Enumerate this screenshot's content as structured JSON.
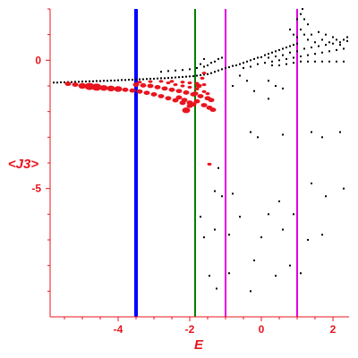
{
  "chart_data": {
    "type": "scatter",
    "title": "",
    "xlabel": "E",
    "ylabel": "<J3>",
    "xlim": [
      -5.9,
      2.45
    ],
    "ylim": [
      -10,
      2
    ],
    "x_ticks": [
      {
        "value": -4,
        "label": "-4"
      },
      {
        "value": -2,
        "label": "-2"
      },
      {
        "value": 0,
        "label": "0"
      },
      {
        "value": 2,
        "label": "2"
      }
    ],
    "y_ticks": [
      {
        "value": 0,
        "label": "0"
      },
      {
        "value": -5,
        "label": "-5"
      }
    ],
    "vertical_lines": [
      {
        "x": -3.5,
        "color": "#0000ff",
        "style": "thick"
      },
      {
        "x": -1.85,
        "color": "#008000",
        "style": "normal"
      },
      {
        "x": -1.0,
        "color": "#e000e0",
        "style": "normal"
      },
      {
        "x": 1.0,
        "color": "#e000e0",
        "style": "normal"
      }
    ],
    "series": [
      {
        "color": "#000000",
        "points": [
          [
            -5.8,
            -0.87
          ],
          [
            -5.7,
            -0.87
          ],
          [
            -5.6,
            -0.86
          ],
          [
            -5.5,
            -0.86
          ],
          [
            -5.4,
            -0.85
          ],
          [
            -5.3,
            -0.85
          ],
          [
            -5.2,
            -0.84
          ],
          [
            -5.1,
            -0.84
          ],
          [
            -5.0,
            -0.83
          ],
          [
            -4.9,
            -0.83
          ],
          [
            -4.8,
            -0.82
          ],
          [
            -4.7,
            -0.82
          ],
          [
            -4.6,
            -0.81
          ],
          [
            -4.5,
            -0.81
          ],
          [
            -4.4,
            -0.8
          ],
          [
            -4.3,
            -0.8
          ],
          [
            -4.2,
            -0.79
          ],
          [
            -4.1,
            -0.79
          ],
          [
            -4.0,
            -0.78
          ],
          [
            -3.9,
            -0.77
          ],
          [
            -3.8,
            -0.77
          ],
          [
            -3.7,
            -0.76
          ],
          [
            -3.6,
            -0.76
          ],
          [
            -3.5,
            -0.75
          ],
          [
            -3.4,
            -0.74
          ],
          [
            -3.3,
            -0.74
          ],
          [
            -3.2,
            -0.73
          ],
          [
            -3.1,
            -0.72
          ],
          [
            -3.0,
            -0.72
          ],
          [
            -2.9,
            -0.71
          ],
          [
            -2.8,
            -0.7
          ],
          [
            -2.7,
            -0.7
          ],
          [
            -2.6,
            -0.69
          ],
          [
            -2.5,
            -0.68
          ],
          [
            -2.4,
            -0.67
          ],
          [
            -2.3,
            -0.66
          ],
          [
            -2.2,
            -0.65
          ],
          [
            -2.1,
            -0.64
          ],
          [
            -2.0,
            -0.63
          ],
          [
            -1.9,
            -0.62
          ],
          [
            -1.8,
            -0.6
          ],
          [
            -1.7,
            -0.58
          ],
          [
            -1.6,
            -0.56
          ],
          [
            -1.5,
            -0.54
          ],
          [
            -1.4,
            -0.5
          ],
          [
            -1.3,
            -0.45
          ],
          [
            -1.2,
            -0.4
          ],
          [
            -1.1,
            -0.35
          ],
          [
            -1.0,
            -0.3
          ],
          [
            -0.9,
            -0.27
          ],
          [
            -0.8,
            -0.22
          ],
          [
            -0.7,
            -0.2
          ],
          [
            -0.6,
            -0.15
          ],
          [
            -0.5,
            -0.1
          ],
          [
            -0.4,
            -0.05
          ],
          [
            -0.3,
            0.0
          ],
          [
            -0.2,
            0.05
          ],
          [
            -0.1,
            0.1
          ],
          [
            0.0,
            0.12
          ],
          [
            0.1,
            0.2
          ],
          [
            0.2,
            0.25
          ],
          [
            0.3,
            0.3
          ],
          [
            0.4,
            0.35
          ],
          [
            0.5,
            0.4
          ],
          [
            0.6,
            0.45
          ],
          [
            0.7,
            0.5
          ],
          [
            0.8,
            0.55
          ],
          [
            0.9,
            0.6
          ],
          [
            1.0,
            0.65
          ],
          [
            -2.8,
            -0.45
          ],
          [
            -2.6,
            -0.42
          ],
          [
            -2.4,
            -0.4
          ],
          [
            -2.2,
            -0.38
          ],
          [
            -2.0,
            -0.35
          ],
          [
            -1.8,
            -0.3
          ],
          [
            -1.6,
            -0.25
          ],
          [
            -1.5,
            -0.2
          ],
          [
            -1.4,
            -0.1
          ],
          [
            -1.3,
            -0.05
          ],
          [
            -1.2,
            0.05
          ],
          [
            -1.1,
            0.1
          ],
          [
            -1.7,
            -0.15
          ],
          [
            -1.6,
            0.05
          ],
          [
            -0.5,
            -0.3
          ],
          [
            -0.3,
            -0.25
          ],
          [
            -0.1,
            -0.15
          ],
          [
            0.1,
            -0.1
          ],
          [
            0.3,
            -0.05
          ],
          [
            0.5,
            0.0
          ],
          [
            0.7,
            0.05
          ],
          [
            0.9,
            0.1
          ],
          [
            1.1,
            0.15
          ],
          [
            1.3,
            0.2
          ],
          [
            1.5,
            0.25
          ],
          [
            1.7,
            0.3
          ],
          [
            1.9,
            0.35
          ],
          [
            2.1,
            0.4
          ],
          [
            2.3,
            0.45
          ],
          [
            0.2,
            0.1
          ],
          [
            0.4,
            0.15
          ],
          [
            0.6,
            0.2
          ],
          [
            0.8,
            0.3
          ],
          [
            1.0,
            0.35
          ],
          [
            1.2,
            0.45
          ],
          [
            1.4,
            0.5
          ],
          [
            1.6,
            0.55
          ],
          [
            1.8,
            0.6
          ],
          [
            2.0,
            0.65
          ],
          [
            2.2,
            0.7
          ],
          [
            2.4,
            0.75
          ],
          [
            0.3,
            -0.2
          ],
          [
            0.5,
            -0.2
          ],
          [
            0.7,
            -0.15
          ],
          [
            0.9,
            -0.1
          ],
          [
            1.1,
            -0.05
          ],
          [
            1.3,
            -0.05
          ],
          [
            1.5,
            -0.05
          ],
          [
            1.7,
            -0.05
          ],
          [
            1.9,
            -0.05
          ],
          [
            2.1,
            -0.05
          ],
          [
            2.3,
            -0.05
          ],
          [
            1.0,
            0.9
          ],
          [
            1.1,
            1.2
          ],
          [
            1.2,
            1.0
          ],
          [
            1.3,
            0.8
          ],
          [
            1.4,
            1.0
          ],
          [
            1.5,
            0.7
          ],
          [
            1.6,
            1.1
          ],
          [
            1.7,
            0.8
          ],
          [
            1.8,
            1.0
          ],
          [
            1.9,
            0.7
          ],
          [
            2.0,
            0.9
          ],
          [
            2.1,
            0.8
          ],
          [
            2.2,
            0.6
          ],
          [
            2.3,
            0.8
          ],
          [
            2.4,
            0.9
          ],
          [
            1.1,
            1.8
          ],
          [
            1.2,
            1.6
          ],
          [
            1.3,
            1.4
          ],
          [
            1.0,
            1.6
          ],
          [
            0.8,
            1.2
          ],
          [
            0.9,
            1.0
          ],
          [
            1.15,
            2.0
          ],
          [
            -0.8,
            -1.0
          ],
          [
            -0.6,
            -0.6
          ],
          [
            -0.4,
            -0.8
          ],
          [
            -0.2,
            -1.2
          ],
          [
            0.2,
            -0.8
          ],
          [
            0.4,
            -1.0
          ],
          [
            0.6,
            -1.1
          ],
          [
            0.2,
            -1.5
          ],
          [
            -0.3,
            -2.8
          ],
          [
            -0.1,
            -3.0
          ],
          [
            0.6,
            -2.9
          ],
          [
            1.4,
            -2.8
          ],
          [
            1.7,
            -3.0
          ],
          [
            2.2,
            -2.8
          ],
          [
            -1.2,
            -4.2
          ],
          [
            -1.3,
            -5.1
          ],
          [
            -1.1,
            -5.3
          ],
          [
            -1.7,
            -6.1
          ],
          [
            -0.8,
            -5.2
          ],
          [
            -0.6,
            -6.1
          ],
          [
            0.2,
            -6.0
          ],
          [
            0.5,
            -5.5
          ],
          [
            0.9,
            -6.0
          ],
          [
            1.4,
            -4.8
          ],
          [
            1.8,
            -5.3
          ],
          [
            2.3,
            -5.0
          ],
          [
            -1.6,
            -6.9
          ],
          [
            -1.3,
            -6.6
          ],
          [
            -0.9,
            -6.8
          ],
          [
            0.0,
            -6.9
          ],
          [
            0.6,
            -6.6
          ],
          [
            1.3,
            -7.0
          ],
          [
            1.7,
            -6.8
          ],
          [
            -1.45,
            -8.4
          ],
          [
            -0.9,
            -8.3
          ],
          [
            -0.2,
            -7.8
          ],
          [
            0.4,
            -8.4
          ],
          [
            0.8,
            -8.0
          ],
          [
            1.1,
            -8.3
          ],
          [
            -1.25,
            -8.9
          ],
          [
            -0.3,
            -9.0
          ]
        ]
      },
      {
        "color": "#e8141e",
        "points": [
          [
            -5.4,
            -0.92,
            3
          ],
          [
            -5.2,
            -0.95,
            3
          ],
          [
            -5.0,
            -1.0,
            4
          ],
          [
            -4.8,
            -1.02,
            5
          ],
          [
            -4.6,
            -1.05,
            5
          ],
          [
            -4.4,
            -1.08,
            4
          ],
          [
            -4.2,
            -1.1,
            4
          ],
          [
            -4.0,
            -1.12,
            4
          ],
          [
            -3.8,
            -1.15,
            3
          ],
          [
            -3.6,
            -1.18,
            3
          ],
          [
            -3.4,
            -1.22,
            3
          ],
          [
            -3.2,
            -1.27,
            3
          ],
          [
            -3.0,
            -1.33,
            3
          ],
          [
            -2.8,
            -1.4,
            3
          ],
          [
            -2.6,
            -1.48,
            3
          ],
          [
            -2.4,
            -1.56,
            3
          ],
          [
            -2.2,
            -1.66,
            3
          ],
          [
            -2.0,
            -1.78,
            3
          ],
          [
            -3.5,
            -0.95,
            3
          ],
          [
            -3.3,
            -0.98,
            3
          ],
          [
            -3.1,
            -1.0,
            3
          ],
          [
            -2.9,
            -1.05,
            3
          ],
          [
            -2.7,
            -1.1,
            3
          ],
          [
            -2.5,
            -1.15,
            3
          ],
          [
            -2.3,
            -1.2,
            3
          ],
          [
            -2.1,
            -1.26,
            3
          ],
          [
            -1.9,
            -1.33,
            3
          ],
          [
            -1.7,
            -1.4,
            3
          ],
          [
            -1.5,
            -1.48,
            3
          ],
          [
            -1.4,
            -1.55,
            3
          ],
          [
            -3.4,
            -0.85,
            2
          ],
          [
            -3.1,
            -0.83,
            2
          ],
          [
            -2.8,
            -0.82,
            2
          ],
          [
            -2.5,
            -0.82,
            2
          ],
          [
            -2.2,
            -0.85,
            2
          ],
          [
            -2.0,
            -0.88,
            2
          ],
          [
            -1.8,
            -0.9,
            2
          ],
          [
            -1.6,
            -0.95,
            2
          ],
          [
            -2.6,
            -0.88,
            2
          ],
          [
            -2.4,
            -0.95,
            2
          ],
          [
            -2.2,
            -1.0,
            2
          ],
          [
            -2.0,
            -1.05,
            2
          ],
          [
            -1.8,
            -1.12,
            2
          ],
          [
            -1.6,
            -1.22,
            2
          ],
          [
            -1.5,
            -1.3,
            2
          ],
          [
            -2.3,
            -1.45,
            3
          ],
          [
            -2.15,
            -1.55,
            3
          ],
          [
            -2.0,
            -1.65,
            3
          ],
          [
            -1.9,
            -1.72,
            3
          ],
          [
            -1.8,
            -1.6,
            3
          ],
          [
            -1.6,
            -1.75,
            3
          ],
          [
            -1.45,
            -1.85,
            3
          ],
          [
            -1.35,
            -1.93,
            3
          ],
          [
            -2.1,
            -1.95,
            4
          ],
          [
            -1.85,
            -1.3,
            3
          ],
          [
            -1.75,
            -1.0,
            3
          ],
          [
            -1.65,
            -0.7,
            2
          ],
          [
            -1.6,
            -0.5,
            2
          ],
          [
            -1.45,
            -4.05,
            2
          ]
        ]
      }
    ]
  }
}
